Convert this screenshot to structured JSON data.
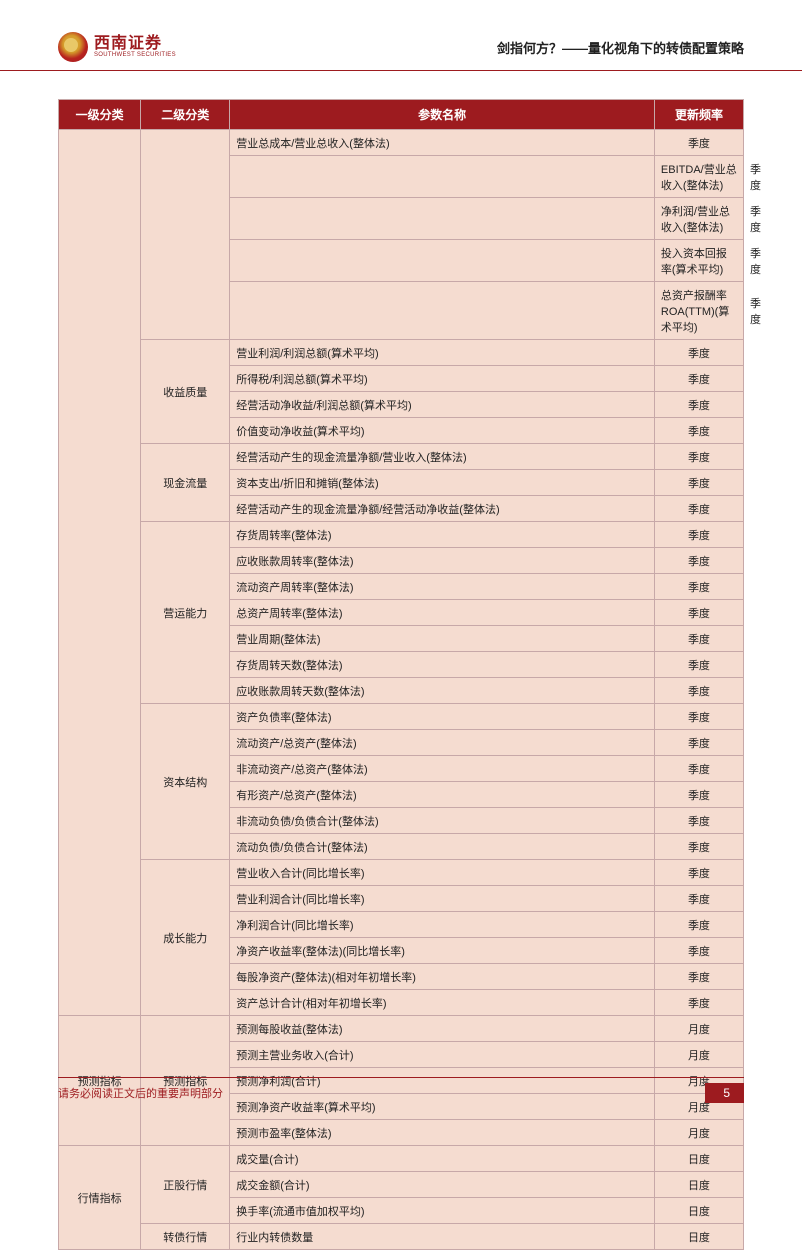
{
  "header": {
    "logo_cn": "西南证券",
    "logo_en": "SOUTHWEST SECURITIES",
    "title": "剑指何方？——量化视角下的转债配置策略"
  },
  "table": {
    "columns": [
      "一级分类",
      "二级分类",
      "参数名称",
      "更新频率"
    ],
    "rows": [
      {
        "c1": "",
        "c2": "",
        "c3": "营业总成本/营业总收入(整体法)",
        "c4": "季度"
      },
      {
        "c1": "",
        "c2": "",
        "c3": "EBITDA/营业总收入(整体法)",
        "c4": "季度"
      },
      {
        "c1": "",
        "c2": "",
        "c3": "净利润/营业总收入(整体法)",
        "c4": "季度"
      },
      {
        "c1": "",
        "c2": "",
        "c3": "投入资本回报率(算术平均)",
        "c4": "季度"
      },
      {
        "c1": "",
        "c2": "",
        "c3": "总资产报酬率 ROA(TTM)(算术平均)",
        "c4": "季度"
      },
      {
        "c1": "",
        "c2": "收益质量",
        "c2span": 4,
        "c3": "营业利润/利润总额(算术平均)",
        "c4": "季度"
      },
      {
        "c1": "",
        "c3": "所得税/利润总额(算术平均)",
        "c4": "季度"
      },
      {
        "c1": "",
        "c3": "经营活动净收益/利润总额(算术平均)",
        "c4": "季度"
      },
      {
        "c1": "",
        "c3": "价值变动净收益(算术平均)",
        "c4": "季度"
      },
      {
        "c1": "",
        "c2": "现金流量",
        "c2span": 3,
        "c3": "经营活动产生的现金流量净额/营业收入(整体法)",
        "c4": "季度"
      },
      {
        "c1": "",
        "c3": "资本支出/折旧和摊销(整体法)",
        "c4": "季度"
      },
      {
        "c1": "",
        "c3": "经营活动产生的现金流量净额/经营活动净收益(整体法)",
        "c4": "季度"
      },
      {
        "c1": "",
        "c2": "营运能力",
        "c2span": 7,
        "c3": "存货周转率(整体法)",
        "c4": "季度"
      },
      {
        "c1": "",
        "c3": "应收账款周转率(整体法)",
        "c4": "季度"
      },
      {
        "c1": "",
        "c3": "流动资产周转率(整体法)",
        "c4": "季度"
      },
      {
        "c1": "",
        "c3": "总资产周转率(整体法)",
        "c4": "季度"
      },
      {
        "c1": "",
        "c3": "营业周期(整体法)",
        "c4": "季度"
      },
      {
        "c1": "",
        "c3": "存货周转天数(整体法)",
        "c4": "季度"
      },
      {
        "c1": "",
        "c3": "应收账款周转天数(整体法)",
        "c4": "季度"
      },
      {
        "c1": "",
        "c2": "资本结构",
        "c2span": 6,
        "c3": "资产负债率(整体法)",
        "c4": "季度"
      },
      {
        "c1": "",
        "c3": "流动资产/总资产(整体法)",
        "c4": "季度"
      },
      {
        "c1": "",
        "c3": "非流动资产/总资产(整体法)",
        "c4": "季度"
      },
      {
        "c1": "",
        "c3": "有形资产/总资产(整体法)",
        "c4": "季度"
      },
      {
        "c1": "",
        "c3": "非流动负债/负债合计(整体法)",
        "c4": "季度"
      },
      {
        "c1": "",
        "c3": "流动负债/负债合计(整体法)",
        "c4": "季度"
      },
      {
        "c1": "",
        "c2": "成长能力",
        "c2span": 6,
        "c3": "营业收入合计(同比增长率)",
        "c4": "季度"
      },
      {
        "c1": "",
        "c3": "营业利润合计(同比增长率)",
        "c4": "季度"
      },
      {
        "c1": "",
        "c3": "净利润合计(同比增长率)",
        "c4": "季度"
      },
      {
        "c1": "",
        "c3": "净资产收益率(整体法)(同比增长率)",
        "c4": "季度"
      },
      {
        "c1": "",
        "c3": "每股净资产(整体法)(相对年初增长率)",
        "c4": "季度"
      },
      {
        "c1": "",
        "c3": "资产总计合计(相对年初增长率)",
        "c4": "季度"
      },
      {
        "c1": "预测指标",
        "c1span": 5,
        "c2": "预测指标",
        "c2span": 5,
        "c3": "预测每股收益(整体法)",
        "c4": "月度"
      },
      {
        "c3": "预测主营业务收入(合计)",
        "c4": "月度"
      },
      {
        "c3": "预测净利润(合计)",
        "c4": "月度"
      },
      {
        "c3": "预测净资产收益率(算术平均)",
        "c4": "月度"
      },
      {
        "c3": "预测市盈率(整体法)",
        "c4": "月度"
      },
      {
        "c1": "行情指标",
        "c1span": 4,
        "c2": "正股行情",
        "c2span": 3,
        "c3": "成交量(合计)",
        "c4": "日度"
      },
      {
        "c3": "成交金额(合计)",
        "c4": "日度"
      },
      {
        "c3": "换手率(流通市值加权平均)",
        "c4": "日度"
      },
      {
        "c2": "转债行情",
        "c3": "行业内转债数量",
        "c4": "日度"
      }
    ]
  },
  "footer": {
    "text": "请务必阅读正文后的重要声明部分",
    "page": "5"
  },
  "colors": {
    "primary": "#9d1b1f",
    "cell_bg": "#f5dcd0",
    "border": "#c7a8a8"
  }
}
